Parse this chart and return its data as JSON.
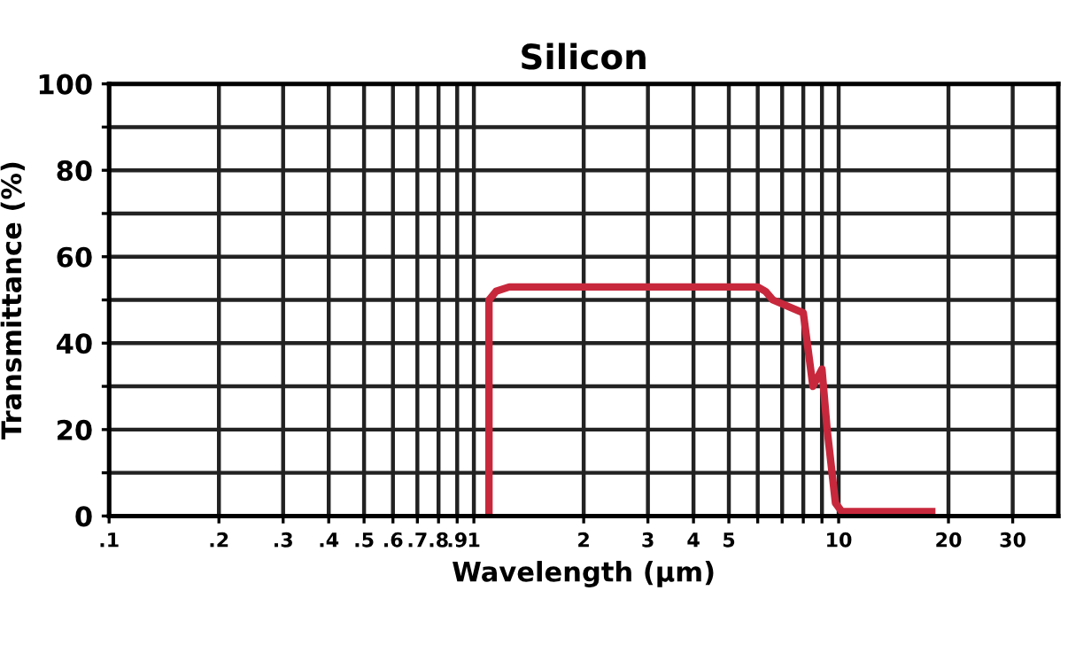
{
  "chart_data": {
    "type": "line",
    "title": "Silicon",
    "xlabel": "Wavelength (µm)",
    "ylabel": "Transmittance (%)",
    "log": "x",
    "grid": true,
    "marker": "none",
    "line_style": "solid",
    "xlim": [
      0.1,
      40
    ],
    "ylim": [
      0,
      100
    ],
    "xticks": [
      {
        "value": 0.1,
        "label": ".1"
      },
      {
        "value": 0.2,
        "label": ".2"
      },
      {
        "value": 0.3,
        "label": ".3"
      },
      {
        "value": 0.4,
        "label": ".4"
      },
      {
        "value": 0.5,
        "label": ".5"
      },
      {
        "value": 0.6,
        "label": ".6"
      },
      {
        "value": 0.7,
        "label": ".7"
      },
      {
        "value": 0.8,
        "label": ".8"
      },
      {
        "value": 0.9,
        "label": ".9"
      },
      1,
      2,
      3,
      4,
      5,
      {
        "value": 6,
        "label": null
      },
      {
        "value": 7,
        "label": null
      },
      {
        "value": 8,
        "label": null
      },
      {
        "value": 9,
        "label": null
      },
      10,
      20,
      30
    ],
    "yticks": [
      0,
      {
        "value": 10,
        "label": null
      },
      20,
      {
        "value": 30,
        "label": null
      },
      40,
      {
        "value": 50,
        "label": null
      },
      60,
      {
        "value": 70,
        "label": null
      },
      80,
      {
        "value": 90,
        "label": null
      },
      100
    ],
    "series": [
      {
        "color": "#c8283c",
        "x": [
          1.1,
          1.1,
          1.15,
          1.25,
          2,
          4,
          6,
          6.3,
          6.6,
          8,
          8.5,
          9,
          9.3,
          9.8,
          10.2,
          18
        ],
        "values": [
          0,
          50,
          52,
          53,
          53,
          53,
          53,
          52,
          50,
          47,
          30,
          34,
          20,
          3,
          1,
          1
        ]
      }
    ]
  }
}
